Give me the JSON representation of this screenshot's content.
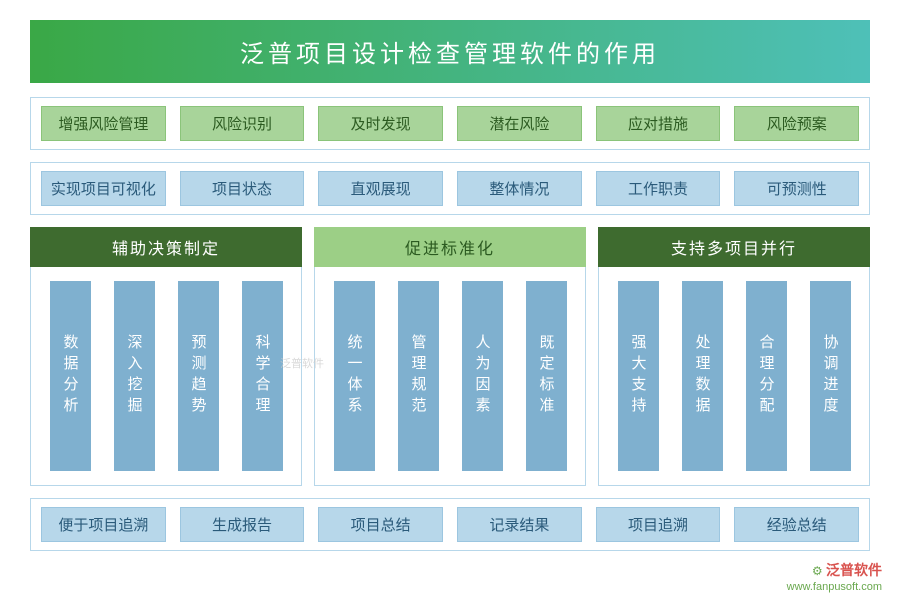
{
  "title": "泛普项目设计检查管理软件的作用",
  "colors": {
    "title_grad_start": "#3aa846",
    "title_grad_end": "#4ec0b8",
    "pill_green_bg": "#a8d49a",
    "pill_blue_bg": "#b7d7ea",
    "header_dark_green": "#3e6b2f",
    "header_light_green": "#9ccf86",
    "vbar_bg": "#7fb0cf",
    "border_blue": "#b7d7ea"
  },
  "row1": {
    "lead": "增强风险管理",
    "items": [
      "风险识别",
      "及时发现",
      "潜在风险",
      "应对措施",
      "风险预案"
    ]
  },
  "row2": {
    "lead": "实现项目可视化",
    "items": [
      "项目状态",
      "直观展现",
      "整体情况",
      "工作职责",
      "可预测性"
    ]
  },
  "columns": [
    {
      "header": "辅助决策制定",
      "header_bg": "#3e6b2f",
      "bars": [
        "数据分析",
        "深入挖掘",
        "预测趋势",
        "科学合理"
      ]
    },
    {
      "header": "促进标准化",
      "header_bg": "#9ccf86",
      "bars": [
        "统一体系",
        "管理规范",
        "人为因素",
        "既定标准"
      ]
    },
    {
      "header": "支持多项目并行",
      "header_bg": "#3e6b2f",
      "bars": [
        "强大支持",
        "处理数据",
        "合理分配",
        "协调进度"
      ]
    }
  ],
  "row3": {
    "lead": "便于项目追溯",
    "items": [
      "生成报告",
      "项目总结",
      "记录结果",
      "项目追溯",
      "经验总结"
    ]
  },
  "brand": {
    "cn": "泛普软件",
    "url": "www.fanpusoft.com"
  },
  "watermark": "泛普软件"
}
